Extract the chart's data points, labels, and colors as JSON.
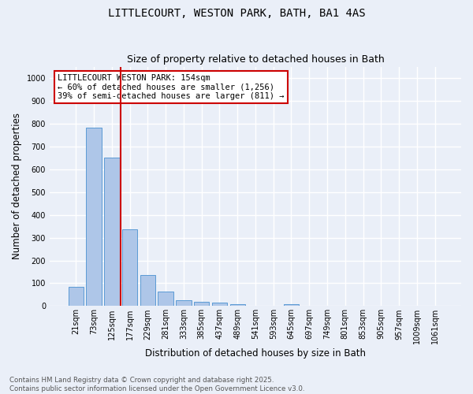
{
  "title_line1": "LITTLECOURT, WESTON PARK, BATH, BA1 4AS",
  "title_line2": "Size of property relative to detached houses in Bath",
  "xlabel": "Distribution of detached houses by size in Bath",
  "ylabel": "Number of detached properties",
  "categories": [
    "21sqm",
    "73sqm",
    "125sqm",
    "177sqm",
    "229sqm",
    "281sqm",
    "333sqm",
    "385sqm",
    "437sqm",
    "489sqm",
    "541sqm",
    "593sqm",
    "645sqm",
    "697sqm",
    "749sqm",
    "801sqm",
    "853sqm",
    "905sqm",
    "957sqm",
    "1009sqm",
    "1061sqm"
  ],
  "values": [
    83,
    783,
    650,
    338,
    135,
    62,
    25,
    18,
    16,
    8,
    0,
    0,
    7,
    0,
    0,
    0,
    0,
    0,
    0,
    0,
    0
  ],
  "bar_color": "#aec6e8",
  "bar_edge_color": "#5b9bd5",
  "background_color": "#eaeff8",
  "grid_color": "#ffffff",
  "red_line_x": 2.5,
  "annotation_text": "LITTLECOURT WESTON PARK: 154sqm\n← 60% of detached houses are smaller (1,256)\n39% of semi-detached houses are larger (811) →",
  "annotation_box_color": "#cc0000",
  "ylim": [
    0,
    1050
  ],
  "yticks": [
    0,
    100,
    200,
    300,
    400,
    500,
    600,
    700,
    800,
    900,
    1000
  ],
  "footnote": "Contains HM Land Registry data © Crown copyright and database right 2025.\nContains public sector information licensed under the Open Government Licence v3.0.",
  "title_fontsize": 10,
  "subtitle_fontsize": 9,
  "tick_fontsize": 7,
  "ylabel_fontsize": 8.5,
  "xlabel_fontsize": 8.5,
  "annotation_fontsize": 7.5
}
